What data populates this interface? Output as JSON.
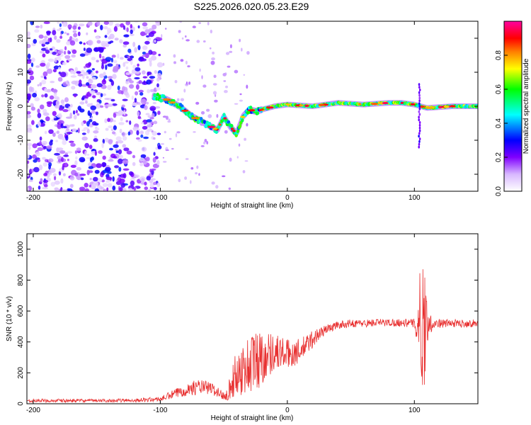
{
  "title": "S225.2026.020.05.23.E29",
  "chart_data": [
    {
      "type": "heatmap",
      "title": "S225.2026.020.05.23.E29",
      "xlabel": "Height of straight line (km)",
      "ylabel": "Frequency (Hz)",
      "xlim": [
        -205,
        150
      ],
      "ylim": [
        -25,
        25
      ],
      "xticks": [
        -200,
        -100,
        0,
        100
      ],
      "yticks": [
        -20,
        -10,
        0,
        10,
        20
      ],
      "colorbar": {
        "label": "Normalized spectral amplitude",
        "range": [
          0,
          1
        ],
        "ticks": [
          "0.0",
          "0.2",
          "0.4",
          "0.6",
          "0.8"
        ],
        "colors": [
          "#ffffff",
          "#d8b8ff",
          "#8000ff",
          "#0000ff",
          "#00ffff",
          "#00ff00",
          "#ffff00",
          "#ff8000",
          "#ff0000",
          "#ff00a0"
        ]
      },
      "noise_region_x": [
        -205,
        -100
      ],
      "ridge": {
        "x": [
          -105,
          -95,
          -85,
          -75,
          -65,
          -55,
          -50,
          -45,
          -40,
          -35,
          -30,
          -25,
          -20,
          -10,
          0,
          20,
          40,
          60,
          80,
          90,
          100,
          105,
          110,
          130,
          150
        ],
        "freq": [
          3,
          2,
          0,
          -3,
          -5,
          -7,
          -3,
          -6,
          -8,
          -3,
          -1,
          -1.5,
          -1,
          0,
          0.5,
          0,
          1,
          0.5,
          1,
          1,
          0.5,
          0,
          -0.5,
          0,
          0
        ]
      }
    },
    {
      "type": "line",
      "xlabel": "Height of straight line (km)",
      "ylabel": "SNR (10 * v/v)",
      "xlim": [
        -205,
        150
      ],
      "ylim": [
        0,
        1100
      ],
      "xticks": [
        -200,
        -100,
        0,
        100
      ],
      "yticks": [
        0,
        200,
        400,
        600,
        800,
        1000
      ],
      "color": "#e83030",
      "series": [
        {
          "name": "SNR",
          "x": [
            -205,
            -180,
            -150,
            -120,
            -100,
            -90,
            -80,
            -70,
            -60,
            -50,
            -45,
            -40,
            -30,
            -25,
            -20,
            -15,
            -10,
            0,
            10,
            20,
            30,
            40,
            50,
            60,
            70,
            80,
            90,
            100,
            103,
            106,
            108,
            110,
            115,
            130,
            150
          ],
          "base": [
            20,
            20,
            20,
            22,
            30,
            60,
            90,
            110,
            100,
            50,
            100,
            200,
            250,
            280,
            300,
            320,
            340,
            320,
            340,
            420,
            480,
            510,
            520,
            520,
            525,
            525,
            525,
            520,
            520,
            540,
            530,
            520,
            520,
            520,
            520
          ],
          "amp": [
            10,
            12,
            10,
            12,
            15,
            30,
            40,
            50,
            40,
            30,
            80,
            150,
            200,
            220,
            180,
            150,
            120,
            100,
            80,
            60,
            30,
            25,
            25,
            25,
            25,
            25,
            25,
            30,
            200,
            500,
            450,
            120,
            30,
            25,
            25
          ]
        }
      ]
    }
  ]
}
